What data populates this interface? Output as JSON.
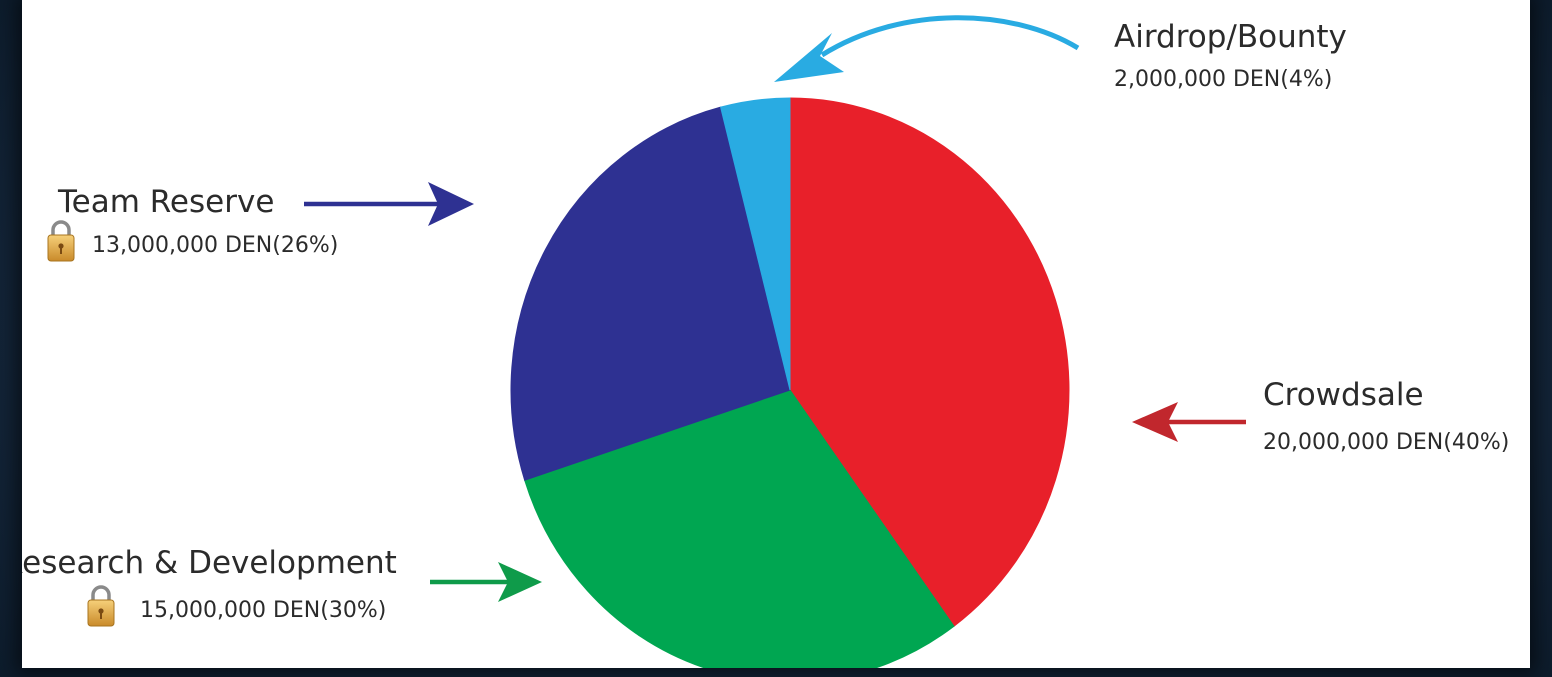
{
  "chart_data": {
    "type": "pie",
    "unit": "DEN",
    "slices": [
      {
        "name": "Crowdsale",
        "value": 20000000,
        "percent": 40,
        "label": "20,000,000 DEN(40%)",
        "color": "#e8202a",
        "arrow_color": "#c1272d",
        "locked": false
      },
      {
        "name": "Research & Development",
        "value": 15000000,
        "percent": 30,
        "label": "15,000,000 DEN(30%)",
        "color": "#00a651",
        "arrow_color": "#0f9b4a",
        "locked": true
      },
      {
        "name": "Team Reserve",
        "value": 13000000,
        "percent": 26,
        "label": "13,000,000 DEN(26%)",
        "color": "#2e3192",
        "arrow_color": "#2e3192",
        "locked": true
      },
      {
        "name": "Airdrop/Bounty",
        "value": 2000000,
        "percent": 4,
        "label": "2,000,000 DEN(4%)",
        "color": "#29abe2",
        "arrow_color": "#29abe2",
        "locked": false
      }
    ]
  },
  "icons": {
    "lock": "padlock-icon"
  }
}
